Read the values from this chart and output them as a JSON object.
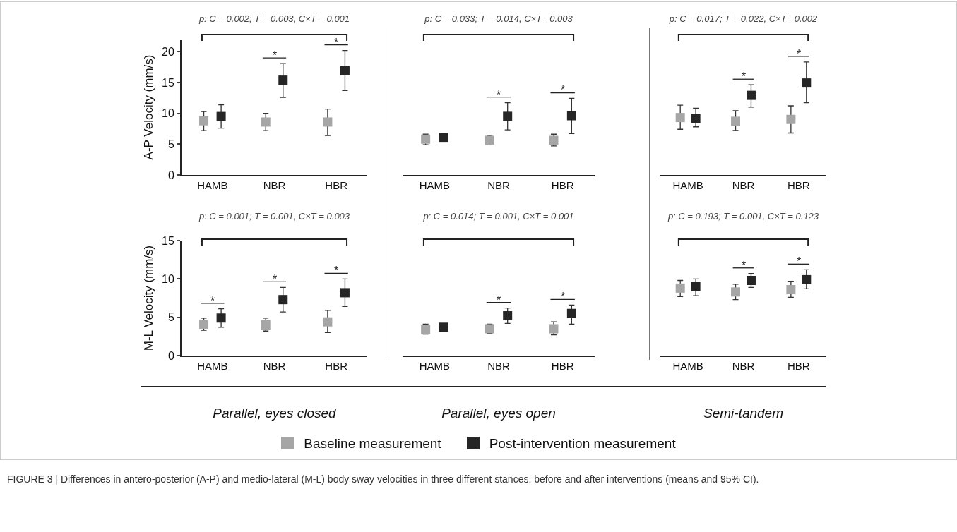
{
  "chart_data": [
    {
      "type": "scatter",
      "title": "p: C = 0.002; T = 0.003, C×T = 0.001",
      "ylabel": "A-P Velocity (mm/s)",
      "categories": [
        "HAMB",
        "NBR",
        "HBR"
      ],
      "ylim": [
        0,
        22
      ],
      "yticks": [
        0,
        5,
        10,
        15,
        20
      ],
      "marker": "square",
      "legend": "bottom",
      "series": [
        {
          "name": "Baseline measurement",
          "color": "#a6a6a6",
          "values": [
            8.8,
            8.6,
            8.6
          ],
          "errors": [
            [
              7.2,
              10.3
            ],
            [
              7.2,
              10.0
            ],
            [
              6.4,
              10.7
            ]
          ]
        },
        {
          "name": "Post-intervention measurement",
          "color": "#262626",
          "values": [
            9.5,
            15.4,
            16.9
          ],
          "errors": [
            [
              7.6,
              11.4
            ],
            [
              12.6,
              18.1
            ],
            [
              13.7,
              20.2
            ]
          ]
        }
      ],
      "annotations": [
        "*",
        "*"
      ]
    },
    {
      "type": "scatter",
      "title": "p: C = 0.033; T = 0.014, C×T= 0.003",
      "categories": [
        "HAMB",
        "NBR",
        "HBR"
      ],
      "ylim": [
        0,
        20
      ],
      "yticks": [
        0,
        5,
        10,
        15,
        20
      ],
      "tick_labels": "x",
      "marker": "square",
      "series": [
        {
          "color": "#a6a6a6",
          "values": [
            5.8,
            5.6,
            5.6
          ],
          "errors": [
            [
              4.9,
              6.6
            ],
            [
              4.9,
              6.4
            ],
            [
              4.7,
              6.6
            ]
          ]
        },
        {
          "color": "#262626",
          "values": [
            6.1,
            9.5,
            9.6
          ],
          "errors": [
            null,
            [
              7.3,
              11.7
            ],
            [
              6.7,
              12.4
            ]
          ]
        }
      ],
      "annotations": [
        "*",
        "*"
      ]
    },
    {
      "type": "scatter",
      "title": "p: C = 0.017; T = 0.022, C×T= 0.002",
      "categories": [
        "HAMB",
        "NBR",
        "HBR"
      ],
      "ylim": [
        0,
        20
      ],
      "yticks": [
        0,
        5,
        10,
        15,
        20
      ],
      "tick_labels": "x",
      "marker": "square",
      "series": [
        {
          "color": "#a6a6a6",
          "values": [
            9.3,
            8.7,
            9.0
          ],
          "errors": [
            [
              7.4,
              11.3
            ],
            [
              7.2,
              10.4
            ],
            [
              6.8,
              11.2
            ]
          ]
        },
        {
          "color": "#262626",
          "values": [
            9.2,
            12.9,
            14.9
          ],
          "errors": [
            [
              7.8,
              10.8
            ],
            [
              11.0,
              14.6
            ],
            [
              11.7,
              18.3
            ]
          ]
        }
      ],
      "annotations": [
        "*",
        "*"
      ]
    },
    {
      "type": "scatter",
      "title": "p: C = 0.001; T = 0.001, C×T = 0.003",
      "ylabel": "M-L Velocity (mm/s)",
      "xlabel": "Parallel, eyes closed",
      "categories": [
        "HAMB",
        "NBR",
        "HBR"
      ],
      "ylim": [
        0,
        15
      ],
      "yticks": [
        0,
        5,
        10,
        15
      ],
      "marker": "square",
      "series": [
        {
          "color": "#a6a6a6",
          "values": [
            4.1,
            4.0,
            4.4
          ],
          "errors": [
            [
              3.3,
              4.9
            ],
            [
              3.2,
              4.9
            ],
            [
              3.0,
              5.9
            ]
          ]
        },
        {
          "color": "#262626",
          "values": [
            4.9,
            7.3,
            8.2
          ],
          "errors": [
            [
              3.7,
              6.1
            ],
            [
              5.7,
              8.9
            ],
            [
              6.4,
              10.0
            ]
          ]
        }
      ],
      "annotations": [
        "*",
        "*",
        "*"
      ]
    },
    {
      "type": "scatter",
      "title": "p: C = 0.014; T = 0.001, C×T = 0.001",
      "xlabel": "Parallel, eyes open",
      "categories": [
        "HAMB",
        "NBR",
        "HBR"
      ],
      "ylim": [
        0,
        15
      ],
      "yticks": [
        0,
        5,
        10,
        15
      ],
      "tick_labels": "x",
      "marker": "square",
      "series": [
        {
          "color": "#a6a6a6",
          "values": [
            3.4,
            3.5,
            3.5
          ],
          "errors": [
            [
              2.8,
              4.1
            ],
            [
              2.9,
              4.1
            ],
            [
              2.7,
              4.4
            ]
          ]
        },
        {
          "color": "#262626",
          "values": [
            3.7,
            5.2,
            5.5
          ],
          "errors": [
            null,
            [
              4.2,
              6.2
            ],
            [
              4.1,
              6.6
            ]
          ]
        }
      ],
      "annotations": [
        "*",
        "*"
      ]
    },
    {
      "type": "scatter",
      "title": "p: C = 0.193; T = 0.001, C×T = 0.123",
      "xlabel": "Semi-tandem",
      "categories": [
        "HAMB",
        "NBR",
        "HBR"
      ],
      "ylim": [
        0,
        15
      ],
      "yticks": [
        0,
        5,
        10,
        15
      ],
      "tick_labels": "x",
      "marker": "square",
      "series": [
        {
          "color": "#a6a6a6",
          "values": [
            8.8,
            8.3,
            8.6
          ],
          "errors": [
            [
              7.7,
              9.8
            ],
            [
              7.3,
              9.3
            ],
            [
              7.6,
              9.7
            ]
          ]
        },
        {
          "color": "#262626",
          "values": [
            9.0,
            9.8,
            9.9
          ],
          "errors": [
            [
              7.8,
              10.0
            ],
            [
              8.9,
              10.7
            ],
            [
              8.7,
              11.2
            ]
          ]
        }
      ],
      "annotations": [
        "*",
        "*"
      ]
    },
    {
      "type": "other",
      "annotations": [
        "FIGURE 3 | Differences in antero-posterior (A-P) and medio-lateral (M-L) body sway velocities in three different stances, before and after interventions (means and 95% CI)."
      ]
    }
  ]
}
